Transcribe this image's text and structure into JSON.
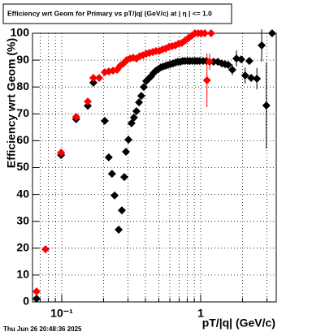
{
  "chart_data": {
    "type": "scatter",
    "title": "Efficiency wrt Geom for Primary vs pT/|q| (GeV/c) at |  η  | <= 1.0",
    "x_label": "pT/|q| (GeV/c)",
    "y_label": "Efficiency wrt Geom (%)",
    "timestamp": "Thu Jun 26 20:48:36 2025",
    "log_x": true,
    "grid": true,
    "xlim": [
      0.0616,
      3.5
    ],
    "ylim": [
      0,
      100
    ],
    "xticks": [
      {
        "value": 0.1,
        "label": "10⁻¹"
      },
      1
    ],
    "x_minor_ticks": [
      0.07,
      0.08,
      0.09,
      0.2,
      0.3,
      0.4,
      0.5,
      0.6,
      0.7,
      0.8,
      0.9,
      2,
      3
    ],
    "yticks": [
      0,
      10,
      20,
      30,
      40,
      50,
      60,
      70,
      80,
      90,
      100
    ],
    "series": [
      {
        "color": "#000000",
        "x": [
          0.0659,
          0.099,
          0.127,
          0.154,
          0.169,
          0.204,
          0.218,
          0.23,
          0.24,
          0.257,
          0.271,
          0.282,
          0.29,
          0.302,
          0.318,
          0.331,
          0.345,
          0.36,
          0.374,
          0.39,
          0.406,
          0.422,
          0.44,
          0.458,
          0.477,
          0.497,
          0.517,
          0.538,
          0.56,
          0.583,
          0.607,
          0.632,
          0.658,
          0.685,
          0.714,
          0.743,
          0.773,
          0.805,
          0.838,
          0.873,
          0.909,
          0.946,
          0.985,
          1.04,
          1.1,
          1.16,
          1.24,
          1.33,
          1.42,
          1.5,
          1.58,
          1.69,
          1.81,
          1.96,
          2.09,
          2.24,
          2.31,
          2.54,
          2.75,
          2.97,
          3.27
        ],
        "values": [
          1.2,
          54.7,
          68,
          73,
          81.6,
          67.4,
          53.8,
          47.7,
          39.6,
          26.9,
          34.1,
          46.5,
          55.9,
          60.4,
          66.5,
          68.6,
          71,
          74.3,
          76.7,
          80,
          82.2,
          83.1,
          84,
          85.2,
          86.1,
          86.7,
          87.3,
          87.6,
          87.9,
          88.2,
          88.5,
          88.8,
          89.1,
          89.4,
          89.4,
          89.7,
          89.7,
          89.7,
          89.7,
          89.7,
          89.7,
          89.7,
          89.7,
          89.7,
          89.7,
          89.4,
          89.4,
          89.4,
          88.8,
          88.5,
          88.2,
          86.4,
          90.6,
          90.3,
          84.3,
          89.7,
          83.4,
          83.1,
          95.5,
          73.1,
          100
        ],
        "errors": [
          null,
          null,
          null,
          null,
          null,
          null,
          null,
          null,
          null,
          null,
          null,
          null,
          null,
          null,
          null,
          null,
          null,
          null,
          null,
          null,
          null,
          null,
          null,
          null,
          null,
          null,
          null,
          null,
          null,
          null,
          null,
          null,
          null,
          null,
          null,
          null,
          null,
          null,
          null,
          null,
          null,
          null,
          null,
          null,
          null,
          null,
          null,
          null,
          null,
          null,
          null,
          2,
          3,
          null,
          3,
          null,
          null,
          4,
          6,
          16,
          null
        ]
      },
      {
        "color": "#ff0000",
        "x": [
          0.0659,
          0.0764,
          0.099,
          0.127,
          0.154,
          0.169,
          0.186,
          0.204,
          0.218,
          0.234,
          0.25,
          0.264,
          0.278,
          0.293,
          0.31,
          0.327,
          0.345,
          0.365,
          0.384,
          0.406,
          0.428,
          0.452,
          0.477,
          0.503,
          0.531,
          0.56,
          0.59,
          0.624,
          0.658,
          0.695,
          0.733,
          0.773,
          0.815,
          0.862,
          0.909,
          0.96,
          1.01,
          1.07,
          1.11,
          1.16,
          1.19
        ],
        "values": [
          3.9,
          19.6,
          55.6,
          68.9,
          74.6,
          83.4,
          83.4,
          85.5,
          85.8,
          86.1,
          86.4,
          87.9,
          88.8,
          90,
          90.6,
          90.9,
          90.6,
          91.5,
          91.8,
          92.4,
          92.7,
          93,
          93.4,
          93.4,
          94,
          94.3,
          94.9,
          95.2,
          95.5,
          96.1,
          96.4,
          97.3,
          98.2,
          99.1,
          100,
          100,
          100,
          100,
          82.5,
          89.4,
          100
        ],
        "errors": [
          null,
          null,
          null,
          null,
          null,
          null,
          null,
          null,
          null,
          null,
          null,
          null,
          null,
          null,
          null,
          null,
          null,
          null,
          null,
          null,
          null,
          null,
          null,
          null,
          null,
          null,
          null,
          null,
          null,
          null,
          null,
          null,
          null,
          null,
          null,
          null,
          null,
          null,
          10,
          3,
          null
        ]
      }
    ]
  }
}
